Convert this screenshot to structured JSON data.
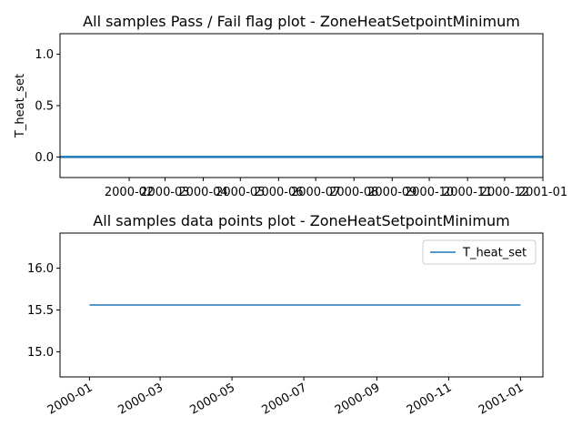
{
  "colors": {
    "series": "#1f77b4",
    "axes": "#000000",
    "background": "#ffffff"
  },
  "chart_data": [
    {
      "type": "line",
      "title": "All samples Pass / Fail flag plot - ZoneHeatSetpointMinimum",
      "xlabel": "",
      "ylabel": "T_heat_set",
      "xlim": [
        "1999-12-07",
        "2001-01-01"
      ],
      "ylim": [
        -0.2,
        1.2
      ],
      "yticks": [
        0.0,
        0.5,
        1.0
      ],
      "ytick_labels": [
        "0.0",
        "0.5",
        "1.0"
      ],
      "xticks": [
        "2000-02-01",
        "2000-03-01",
        "2000-04-01",
        "2000-05-01",
        "2000-06-01",
        "2000-07-01",
        "2000-08-01",
        "2000-09-01",
        "2000-10-01",
        "2000-11-01",
        "2000-12-01",
        "2001-01-01"
      ],
      "xtick_labels": [
        "2000-02",
        "2000-03",
        "2000-04",
        "2000-05",
        "2000-06",
        "2000-07",
        "2000-08",
        "2000-09",
        "2000-10",
        "2000-11",
        "2000-12",
        "2001-01"
      ],
      "grid": false,
      "series": [
        {
          "x": [
            "1999-12-07",
            "2001-01-01"
          ],
          "values": [
            0,
            0
          ]
        }
      ]
    },
    {
      "type": "line",
      "title": "All samples data points plot - ZoneHeatSetpointMinimum",
      "xlabel": "",
      "ylabel": "",
      "xlim": [
        "1999-12-07",
        "2001-01-20"
      ],
      "ylim": [
        14.7,
        16.42
      ],
      "yticks": [
        15.0,
        15.5,
        16.0
      ],
      "ytick_labels": [
        "15.0",
        "15.5",
        "16.0"
      ],
      "xticks": [
        "2000-01-01",
        "2000-03-01",
        "2000-05-01",
        "2000-07-01",
        "2000-09-01",
        "2000-11-01",
        "2001-01-01"
      ],
      "xtick_labels": [
        "2000-01",
        "2000-03",
        "2000-05",
        "2000-07",
        "2000-09",
        "2000-11",
        "2001-01"
      ],
      "grid": false,
      "legend": "top-right",
      "series": [
        {
          "name": "T_heat_set",
          "x": [
            "2000-01-01",
            "2001-01-01"
          ],
          "values": [
            15.56,
            15.56
          ]
        }
      ]
    }
  ]
}
